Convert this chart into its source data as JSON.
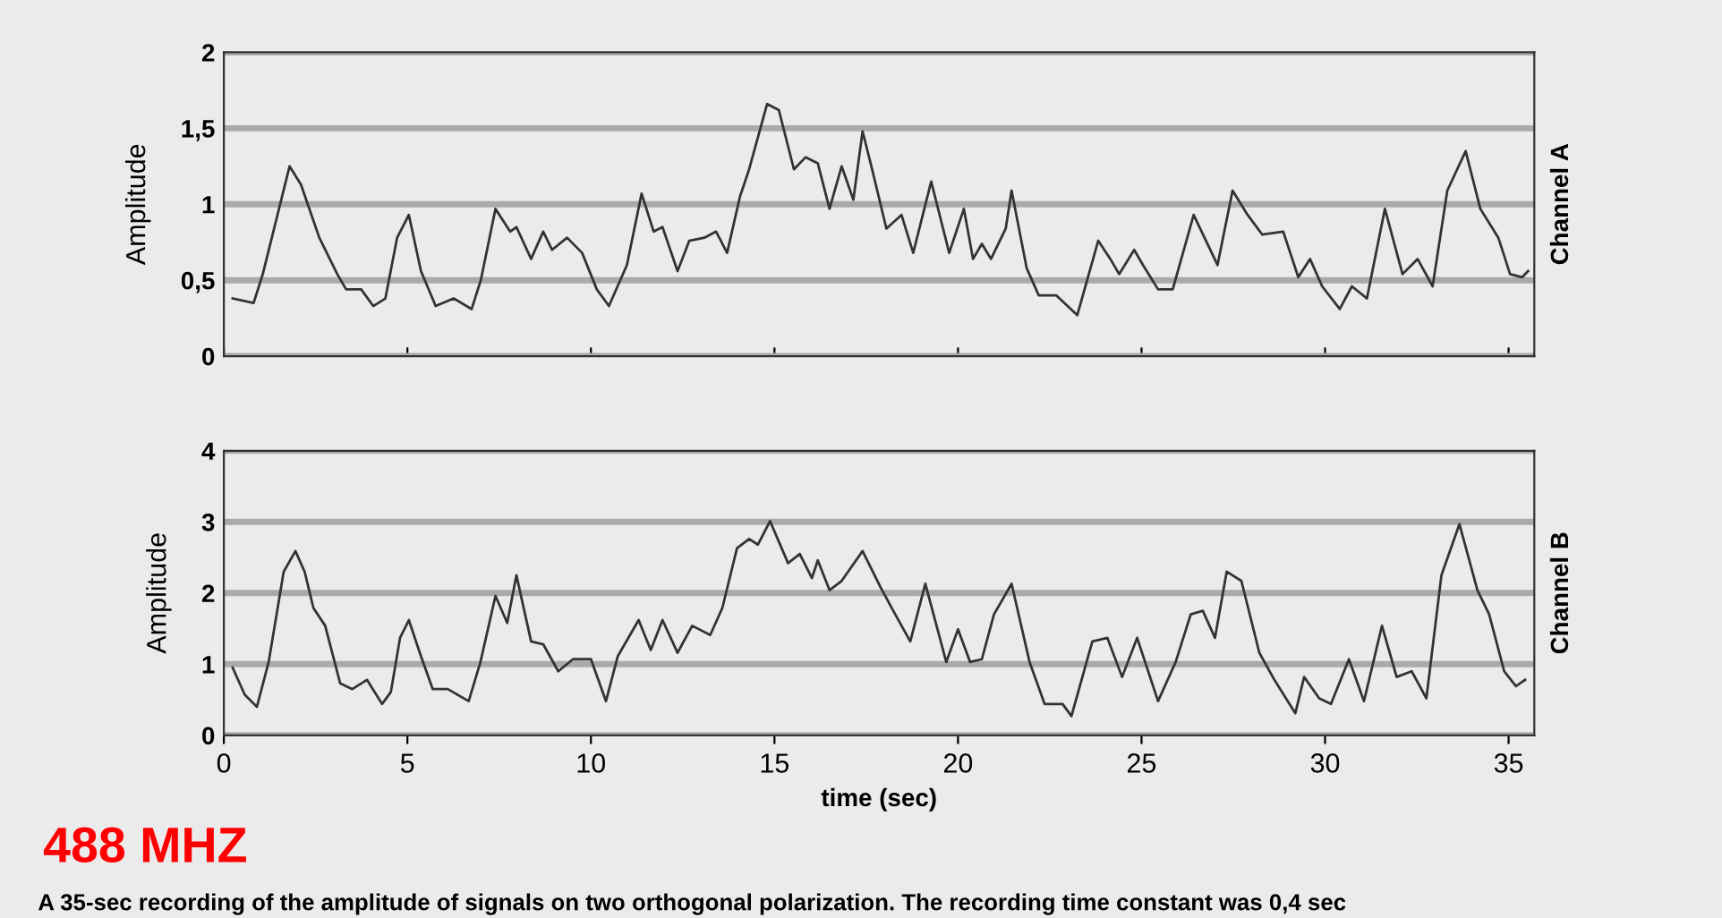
{
  "chart_data": [
    {
      "type": "line",
      "ylabel": "Amplitude",
      "y2label": "Channel A",
      "xlim": [
        0,
        35.7
      ],
      "xticks": [
        0,
        5,
        10,
        15,
        20,
        25,
        30,
        35
      ],
      "ylim": [
        0,
        2
      ],
      "yticks": [
        0,
        {
          "value": 0.5,
          "label": "0,5"
        },
        1,
        {
          "value": 1.5,
          "label": "1,5"
        },
        2
      ],
      "grid": "y",
      "tick_labels": "y",
      "legend": false,
      "series": [
        {
          "color": "#333333",
          "x": [
            0.24,
            0.81,
            1.06,
            1.79,
            2.1,
            2.6,
            3.09,
            3.33,
            3.74,
            4.07,
            4.4,
            4.72,
            5.04,
            5.37,
            5.77,
            6.26,
            6.75,
            7.0,
            7.4,
            7.8,
            7.97,
            8.37,
            8.7,
            8.94,
            9.35,
            9.76,
            10.16,
            10.49,
            10.98,
            11.38,
            11.71,
            11.95,
            12.36,
            12.68,
            13.09,
            13.41,
            13.71,
            14.06,
            14.31,
            14.8,
            15.12,
            15.53,
            15.85,
            16.18,
            16.5,
            16.83,
            17.15,
            17.4,
            17.64,
            18.05,
            18.46,
            18.78,
            19.27,
            19.76,
            20.16,
            20.41,
            20.65,
            20.9,
            21.3,
            21.46,
            21.87,
            22.2,
            22.68,
            23.25,
            23.82,
            24.15,
            24.39,
            24.8,
            25.04,
            25.45,
            25.85,
            26.42,
            27.07,
            27.48,
            27.89,
            28.29,
            28.86,
            29.27,
            29.59,
            29.92,
            30.4,
            30.73,
            31.14,
            31.63,
            32.11,
            32.52,
            32.93,
            33.33,
            33.83,
            34.23,
            34.72,
            35.04,
            35.37,
            35.53
          ],
          "values": [
            0.38,
            0.35,
            0.54,
            1.25,
            1.13,
            0.78,
            0.54,
            0.44,
            0.44,
            0.33,
            0.38,
            0.78,
            0.93,
            0.56,
            0.33,
            0.38,
            0.31,
            0.5,
            0.97,
            0.82,
            0.85,
            0.64,
            0.82,
            0.7,
            0.78,
            0.68,
            0.44,
            0.33,
            0.6,
            1.07,
            0.82,
            0.85,
            0.56,
            0.76,
            0.78,
            0.82,
            0.68,
            1.05,
            1.23,
            1.66,
            1.62,
            1.23,
            1.31,
            1.27,
            0.97,
            1.25,
            1.03,
            1.48,
            1.25,
            0.84,
            0.93,
            0.68,
            1.15,
            0.68,
            0.97,
            0.64,
            0.74,
            0.64,
            0.84,
            1.09,
            0.58,
            0.4,
            0.4,
            0.27,
            0.76,
            0.64,
            0.54,
            0.7,
            0.6,
            0.44,
            0.44,
            0.93,
            0.6,
            1.09,
            0.93,
            0.8,
            0.82,
            0.52,
            0.64,
            0.46,
            0.31,
            0.46,
            0.38,
            0.97,
            0.54,
            0.64,
            0.46,
            1.09,
            1.35,
            0.97,
            0.78,
            0.54,
            0.52,
            0.56
          ]
        }
      ]
    },
    {
      "type": "line",
      "ylabel": "Amplitude",
      "y2label": "Channel B",
      "xlabel": "time (sec)",
      "xlim": [
        0,
        35.7
      ],
      "xticks": [
        0,
        5,
        10,
        15,
        20,
        25,
        30,
        35
      ],
      "ylim": [
        0,
        4
      ],
      "yticks": [
        0,
        1,
        2,
        3,
        4
      ],
      "grid": "y",
      "legend": false,
      "annotations": [
        "488 MHZ",
        "A 35-sec recording of the amplitude of signals on two orthogonal polarization. The recording time constant was 0,4 sec"
      ],
      "series": [
        {
          "color": "#333333",
          "x": [
            0.24,
            0.57,
            0.9,
            1.22,
            1.63,
            1.95,
            2.2,
            2.44,
            2.76,
            3.17,
            3.5,
            3.9,
            4.31,
            4.55,
            4.8,
            5.04,
            5.37,
            5.69,
            6.1,
            6.67,
            6.99,
            7.4,
            7.72,
            7.97,
            8.37,
            8.7,
            9.11,
            9.51,
            10.0,
            10.41,
            10.73,
            11.3,
            11.63,
            11.95,
            12.36,
            12.76,
            13.25,
            13.58,
            13.98,
            14.31,
            14.55,
            14.88,
            15.37,
            15.69,
            16.02,
            16.18,
            16.5,
            16.83,
            17.4,
            17.89,
            18.29,
            18.7,
            19.11,
            19.68,
            20.0,
            20.33,
            20.65,
            20.98,
            21.46,
            21.95,
            22.36,
            22.85,
            23.09,
            23.66,
            24.07,
            24.47,
            24.88,
            25.45,
            25.93,
            26.34,
            26.67,
            27.0,
            27.32,
            27.72,
            28.21,
            28.62,
            29.19,
            29.43,
            29.84,
            30.16,
            30.65,
            31.06,
            31.55,
            31.95,
            32.36,
            32.76,
            33.17,
            33.66,
            34.15,
            34.47,
            34.88,
            35.2,
            35.45
          ],
          "values": [
            0.95,
            0.57,
            0.4,
            1.03,
            2.3,
            2.59,
            2.3,
            1.79,
            1.54,
            0.73,
            0.65,
            0.78,
            0.44,
            0.61,
            1.37,
            1.62,
            1.11,
            0.65,
            0.65,
            0.48,
            1.03,
            1.96,
            1.58,
            2.25,
            1.32,
            1.28,
            0.9,
            1.07,
            1.07,
            0.48,
            1.11,
            1.62,
            1.2,
            1.62,
            1.16,
            1.54,
            1.41,
            1.79,
            2.63,
            2.76,
            2.68,
            3.01,
            2.42,
            2.55,
            2.21,
            2.46,
            2.04,
            2.17,
            2.59,
            2.08,
            1.7,
            1.32,
            2.13,
            1.03,
            1.49,
            1.03,
            1.07,
            1.7,
            2.13,
            1.03,
            0.44,
            0.44,
            0.27,
            1.32,
            1.37,
            0.82,
            1.37,
            0.48,
            1.03,
            1.7,
            1.75,
            1.37,
            2.3,
            2.17,
            1.16,
            0.78,
            0.31,
            0.82,
            0.52,
            0.44,
            1.07,
            0.48,
            1.54,
            0.82,
            0.9,
            0.52,
            2.25,
            2.97,
            2.04,
            1.7,
            0.9,
            0.69,
            0.78
          ]
        }
      ]
    }
  ]
}
